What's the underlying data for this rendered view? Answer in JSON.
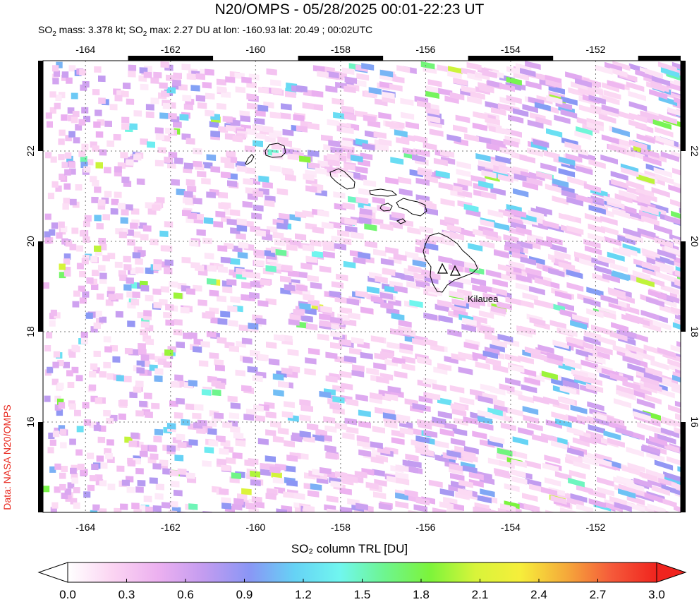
{
  "header": {
    "title": "N20/OMPS - 05/28/2025 00:01-22:23 UT",
    "subtitle_parts": [
      "SO",
      "2",
      " mass: 3.378 kt; SO",
      "2",
      " max: 2.27 DU at lon: -160.93 lat: 20.49 ; 00:02UTC"
    ]
  },
  "credit": "Data: NASA N20/OMPS",
  "map": {
    "lon_range": [
      -165,
      -150
    ],
    "lat_range": [
      14,
      24
    ],
    "lon_ticks": [
      -164,
      -162,
      -160,
      -158,
      -156,
      -154,
      -152
    ],
    "lat_ticks": [
      16,
      18,
      20,
      22
    ],
    "lon_tick_labels": [
      "-164",
      "-162",
      "-160",
      "-158",
      "-156",
      "-154",
      "-152"
    ],
    "lat_tick_labels": [
      "16",
      "18",
      "20",
      "22"
    ],
    "volcano_label": "Kilauea",
    "grid": "dotted"
  },
  "colorbar": {
    "label": "SO₂ column TRL [DU]",
    "min": 0.0,
    "max": 3.0,
    "tick_labels": [
      "0.0",
      "0.3",
      "0.6",
      "0.9",
      "1.2",
      "1.5",
      "1.8",
      "2.1",
      "2.4",
      "2.7",
      "3.0"
    ],
    "colors": [
      "#ffffff",
      "#fbd4f2",
      "#ecb0f0",
      "#c39cf0",
      "#8a96f5",
      "#66d2f5",
      "#70f6ef",
      "#6ef58f",
      "#7cf43a",
      "#d8f43a",
      "#f6ee3a",
      "#f5aa3a",
      "#f55a3a",
      "#f0241e"
    ]
  }
}
